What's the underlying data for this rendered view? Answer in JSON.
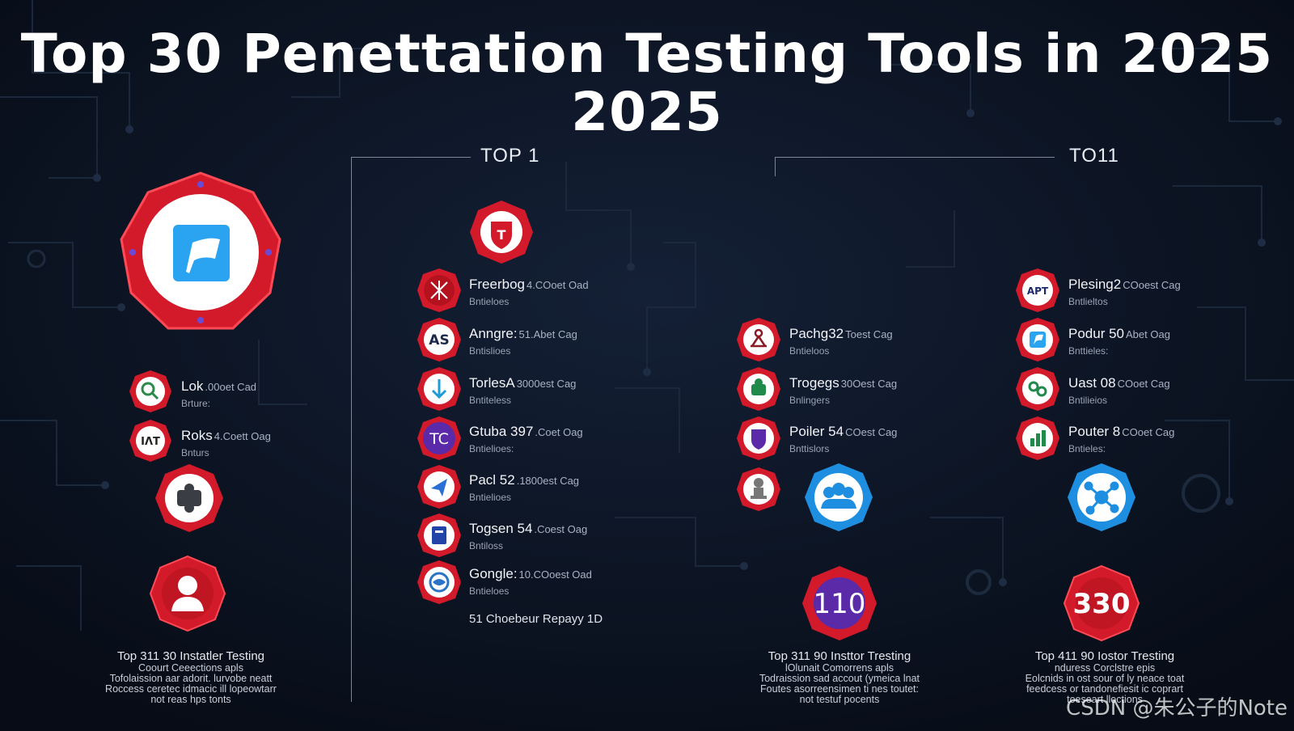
{
  "title": {
    "line1": "Top 30 Penettation Testing Tools in 2025",
    "line2": "2025"
  },
  "section_headers": {
    "left": "TOP 1",
    "right": "TO11"
  },
  "colors": {
    "background": "#0b1220",
    "badge_red": "#d31a2a",
    "badge_blue": "#1e8fe0",
    "badge_purple": "#5a2aa8",
    "accent_blue": "#2aa3f0"
  },
  "col1": {
    "feature_icon": "flag-icon",
    "items": [
      {
        "name": "Lok",
        "sub": ".00oet Cad",
        "cat": "Brture:",
        "icon": "search-icon"
      },
      {
        "name": "Roks",
        "sub": "4.Coett Oag",
        "cat": "Bnturs",
        "icon": "text-icon",
        "icon_text": "IɅT"
      }
    ],
    "extra_icon": "puzzle-icon",
    "bottom_icon": "person-icon",
    "caption": {
      "title": "Top 311 30 Instatler Testing",
      "lines": [
        "Coourt Ceeections apls",
        "Tofolaission aar adorit. lurvobe neatt",
        "Roccess ceretec idmacic ill lopeowtarr",
        "not reas hps tonts"
      ]
    }
  },
  "col2": {
    "top_icon": "shield-t-icon",
    "top_icon_text": "T",
    "items": [
      {
        "name": "Freerbog",
        "sub": "4.COoet Oad",
        "cat": "Bntieloes",
        "icon": "crosshair-icon"
      },
      {
        "name": "Anngre:",
        "sub": "51.Abet Cag",
        "cat": "Bntislioes",
        "icon": "as-icon",
        "icon_text": "AS"
      },
      {
        "name": "TorlesA",
        "sub": "3000est Cag",
        "cat": "Bntiteless",
        "icon": "arrow-down-icon"
      },
      {
        "name": "Gtuba 397",
        "sub": ".Coet Oag",
        "cat": "Bntielioes:",
        "icon": "tc-icon",
        "icon_text": "TC"
      },
      {
        "name": "Pacl 52",
        "sub": ".1800est Cag",
        "cat": "Bntielioes",
        "icon": "blue-bird-icon"
      },
      {
        "name": "Togsen 54",
        "sub": ".Coest Oag",
        "cat": "Bntiloss",
        "icon": "document-icon"
      },
      {
        "name": "Gongle:",
        "sub": "10.COoest Oad",
        "cat": "Bntieloes",
        "icon": "globe-icon"
      }
    ],
    "footnote": "51 Choebeur Repayy 1D"
  },
  "col3": {
    "items": [
      {
        "name": "Pachg32",
        "sub": "Toest Cag",
        "cat": "Bntieloos",
        "icon": "network-icon"
      },
      {
        "name": "Trogegs",
        "sub": "30Oest Cag",
        "cat": "Bnlingers",
        "icon": "green-puzzle-icon"
      },
      {
        "name": "Poiler 54",
        "sub": "COest Cag",
        "cat": "Bnttislors",
        "icon": "purple-shield-icon"
      }
    ],
    "extra_icon": "stamp-icon",
    "blue_icon": "group-icon",
    "number_badge": "110",
    "caption": {
      "title": "Top 311 90 Insttor Tresting",
      "lines": [
        "lOlunait Comorrens apls",
        "Todraission sad accout (ymeica lnat",
        "Foutes asorreensimen ti nes toutet:",
        "not testuf pocents"
      ]
    }
  },
  "col4": {
    "items": [
      {
        "name": "Plesing2",
        "sub": "COoest Cag",
        "cat": "Bntlieltos",
        "icon": "apt-icon",
        "icon_text": "APT"
      },
      {
        "name": "Podur 50",
        "sub": "Abet Oag",
        "cat": "Bnttieles:",
        "icon": "blue-flag-icon"
      },
      {
        "name": "Uast 08",
        "sub": "COoet Cag",
        "cat": "Bntilieios",
        "icon": "link-icon"
      },
      {
        "name": "Pouter 8",
        "sub": "COoet Cag",
        "cat": "Bntieles:",
        "icon": "chart-icon"
      }
    ],
    "blue_icon": "hub-icon",
    "number_badge": "330",
    "caption": {
      "title": "Top 411 90 Iostor Tresting",
      "lines": [
        "nduress Corclstre epis",
        "Eolcnids in ost sour of ly neace toat",
        "feedcess or tandonefiesit ic coprart",
        "toeseart lloctions"
      ]
    }
  },
  "watermark": "CSDN @朱公子的Note"
}
